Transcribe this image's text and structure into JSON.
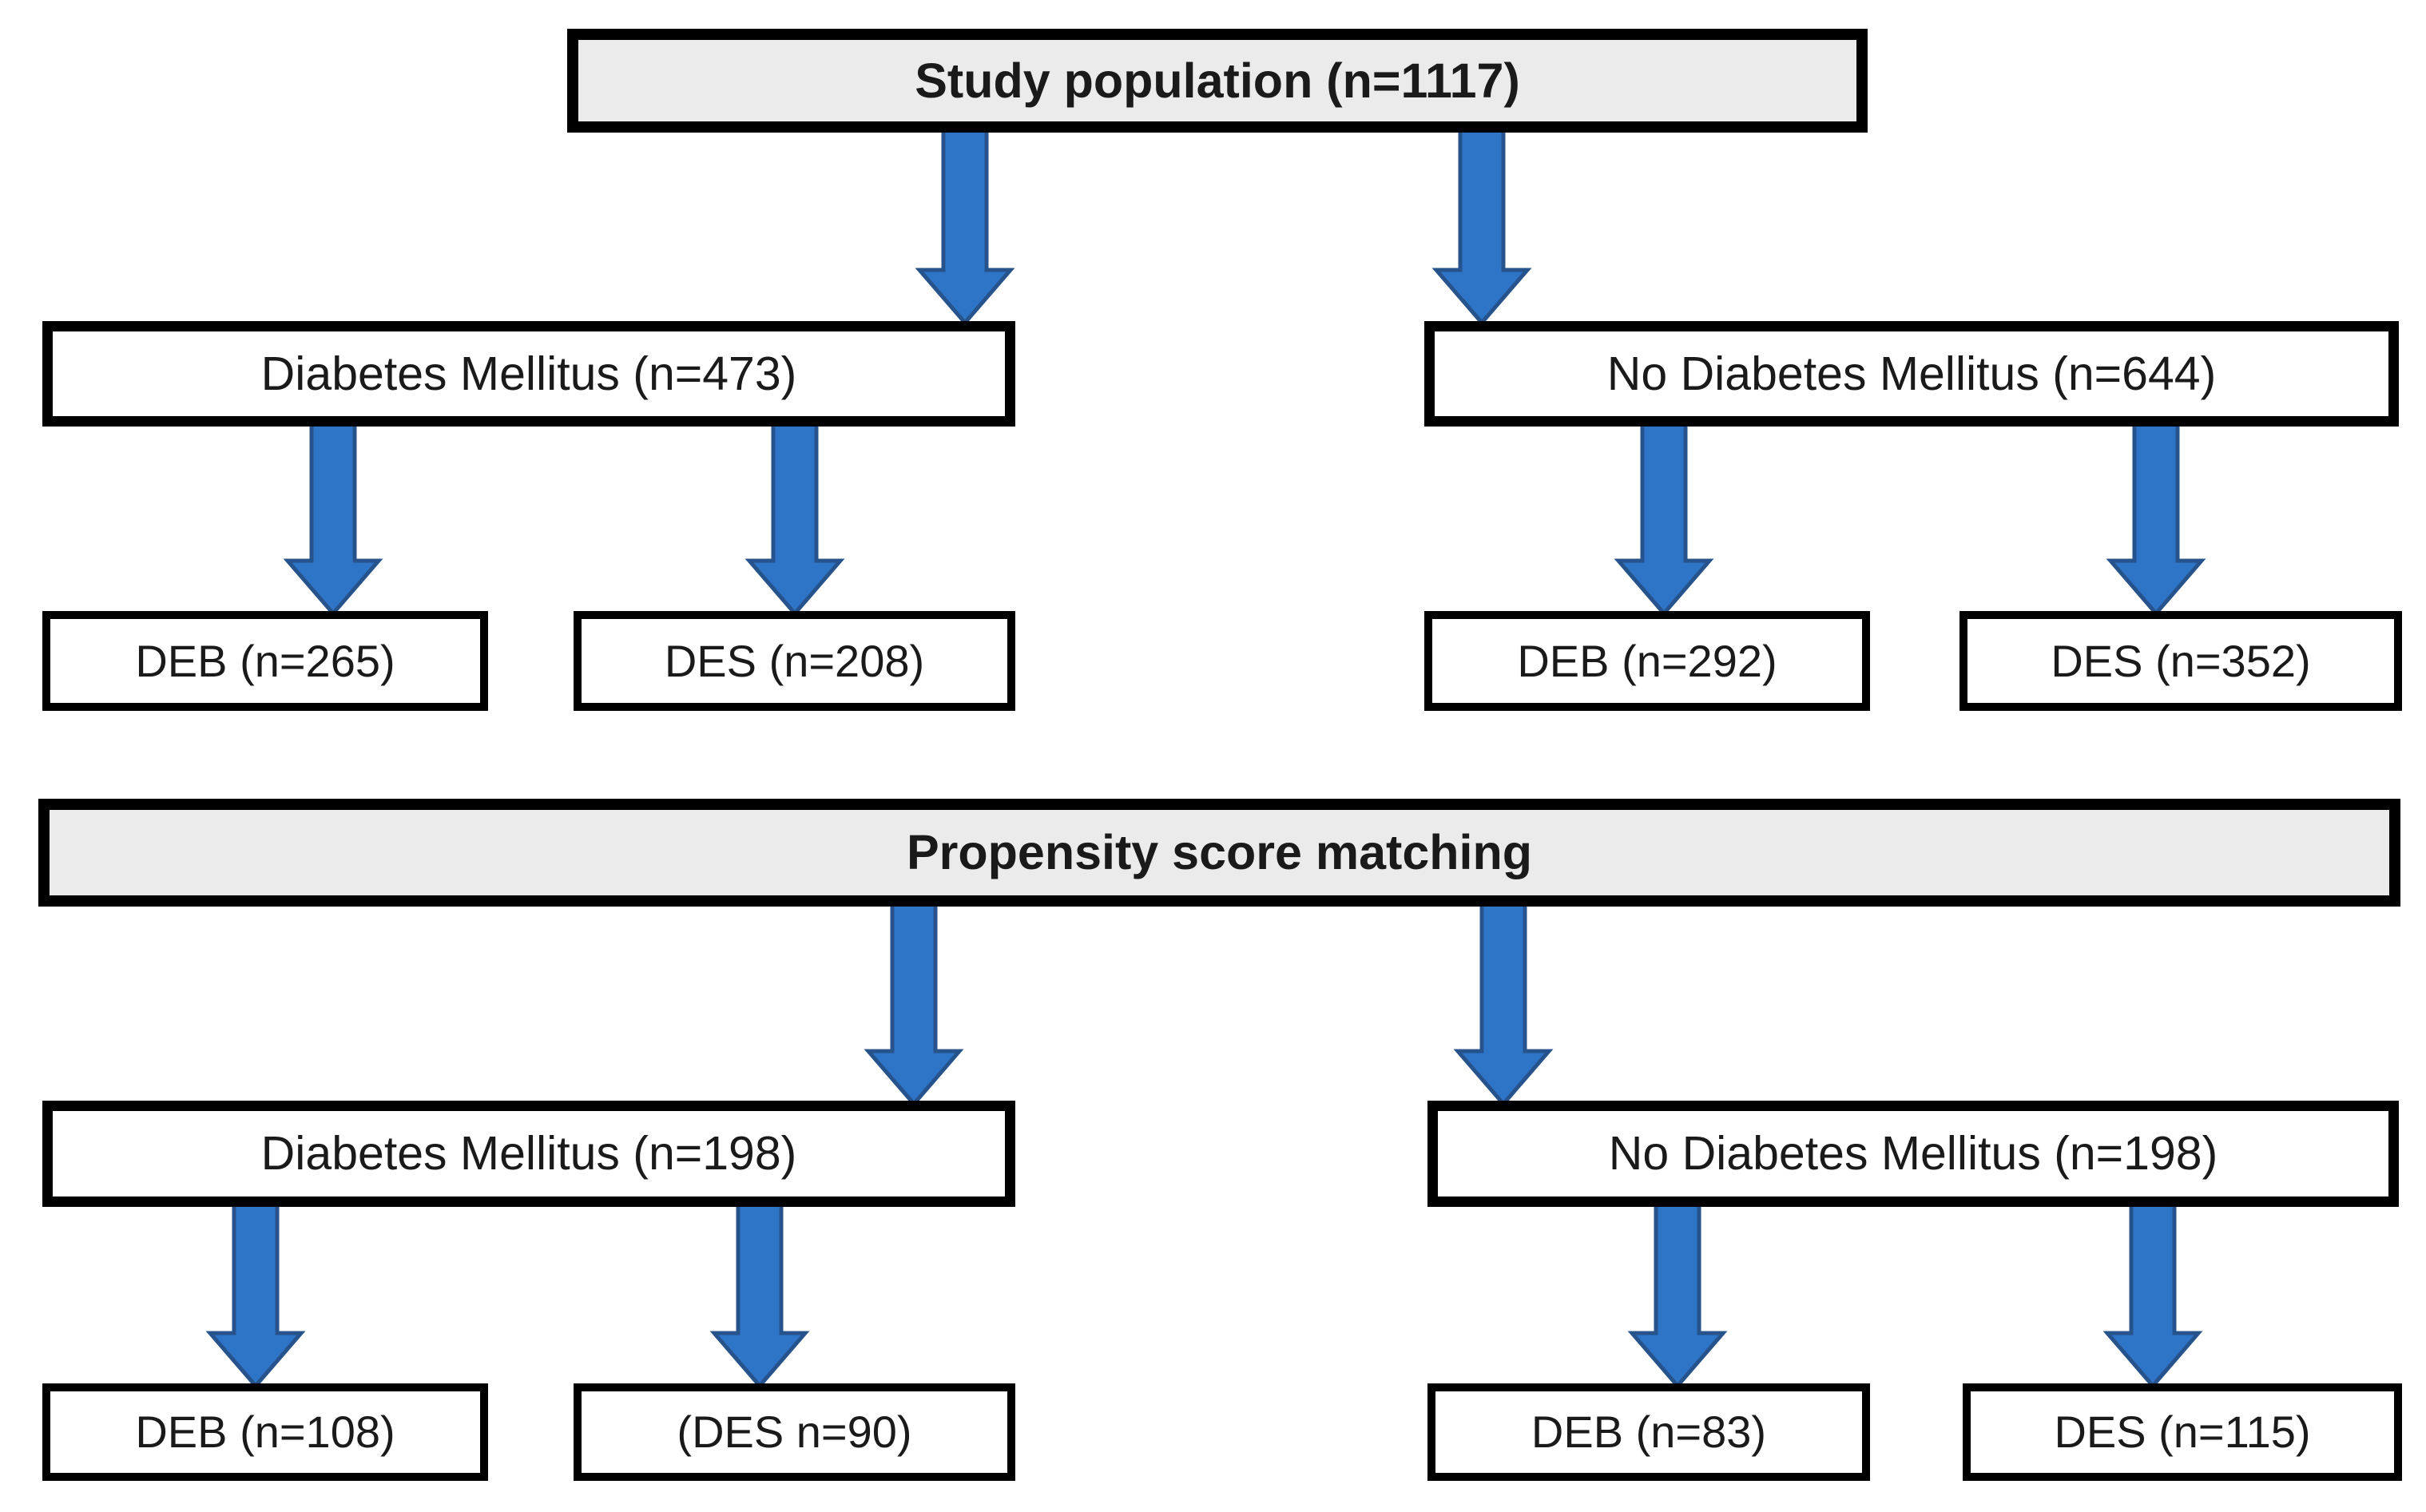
{
  "figure": {
    "type": "flowchart",
    "description_source": "patient selection flow diagram"
  },
  "colors": {
    "background": "#ffffff",
    "box_border": "#000000",
    "header_fill": "#ebebeb",
    "node_fill": "#ffffff",
    "text": "#1a1a1a",
    "arrow_fill": "#2e74c7",
    "arrow_stroke": "#27538c"
  },
  "nodes": {
    "study_population": "Study population (n=1117)",
    "diabetes_mellitus": "Diabetes Mellitus (n=473)",
    "no_diabetes_mellitus": "No Diabetes Mellitus (n=644)",
    "dm_deb": "DEB (n=265)",
    "dm_des": "DES (n=208)",
    "nodm_deb": "DEB (n=292)",
    "nodm_des": "DES (n=352)",
    "propensity_score_matching": "Propensity score matching",
    "dm_matched": "Diabetes Mellitus (n=198)",
    "nodm_matched": "No Diabetes Mellitus (n=198)",
    "dm_matched_deb": "DEB (n=108)",
    "dm_matched_des": "(DES n=90)",
    "nodm_matched_deb": "DEB (n=83)",
    "nodm_matched_des": "DES (n=115)"
  },
  "edges": [
    {
      "from": "study_population",
      "to": "diabetes_mellitus"
    },
    {
      "from": "study_population",
      "to": "no_diabetes_mellitus"
    },
    {
      "from": "diabetes_mellitus",
      "to": "dm_deb"
    },
    {
      "from": "diabetes_mellitus",
      "to": "dm_des"
    },
    {
      "from": "no_diabetes_mellitus",
      "to": "nodm_deb"
    },
    {
      "from": "no_diabetes_mellitus",
      "to": "nodm_des"
    },
    {
      "from": "propensity_score_matching",
      "to": "dm_matched"
    },
    {
      "from": "propensity_score_matching",
      "to": "nodm_matched"
    },
    {
      "from": "dm_matched",
      "to": "dm_matched_deb"
    },
    {
      "from": "dm_matched",
      "to": "dm_matched_des"
    },
    {
      "from": "nodm_matched",
      "to": "nodm_matched_deb"
    },
    {
      "from": "nodm_matched",
      "to": "nodm_matched_des"
    }
  ]
}
